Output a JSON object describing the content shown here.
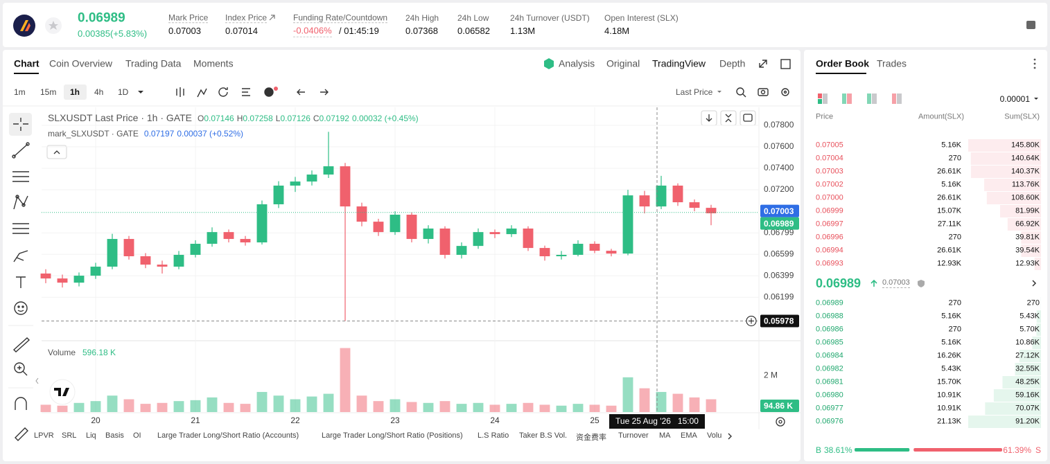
{
  "header": {
    "price": "0.06989",
    "change": "0.00385(+5.83%)",
    "stats": [
      {
        "label": "Mark Price",
        "value": "0.07003"
      },
      {
        "label": "Index Price",
        "value": "0.07014"
      },
      {
        "label": "Funding Rate/Countdown",
        "value": "-0.0406%",
        "countdown": "/ 01:45:19"
      },
      {
        "label": "24h High",
        "value": "0.07368"
      },
      {
        "label": "24h Low",
        "value": "0.06582"
      },
      {
        "label": "24h Turnover (USDT)",
        "value": "1.13M"
      },
      {
        "label": "Open Interest (SLX)",
        "value": "4.18M"
      }
    ]
  },
  "chart_panel": {
    "tabs": [
      "Chart",
      "Coin Overview",
      "Trading Data",
      "Moments"
    ],
    "selected_tab": 0,
    "views": [
      "Analysis",
      "Original",
      "TradingView",
      "Depth"
    ],
    "selected_view": 2,
    "intervals": [
      "1m",
      "15m",
      "1h",
      "4h",
      "1D"
    ],
    "selected_interval": 2,
    "price_type": "Last Price",
    "indicators": [
      "LPVR",
      "SRL",
      "Liq",
      "Basis",
      "OI",
      "Large Trader Long/Short Ratio (Accounts)",
      "Large Trader Long/Short Ratio (Positions)",
      "L.S Ratio",
      "Taker B.S Vol.",
      "资金费率",
      "Turnover",
      "MA",
      "EMA",
      "Volu"
    ]
  },
  "chart_data": {
    "type": "candlestick",
    "legend": {
      "title": "SLXUSDT Last Price · 1h · GATE",
      "ohlc": [
        {
          "label": "O",
          "value": "0.07146"
        },
        {
          "label": "H",
          "value": "0.07258"
        },
        {
          "label": "L",
          "value": "0.07126"
        },
        {
          "label": "C",
          "value": "0.07192"
        }
      ],
      "change": "0.00032 (+0.45%)",
      "mark_title": "mark_SLXUSDT · GATE",
      "mark_value": "0.07197",
      "mark_change": "0.00037 (+0.52%)"
    },
    "up_color": "#2ebd85",
    "down_color": "#f0616d",
    "mark_color": "#2f6ee5",
    "x": [
      -12,
      -8,
      -4,
      0,
      4,
      8,
      12,
      16,
      20,
      24,
      28,
      32,
      36,
      40,
      44,
      48,
      52,
      56,
      60,
      64,
      68,
      72,
      76,
      80,
      84,
      88,
      92,
      96,
      100,
      104,
      108,
      112,
      116,
      120,
      124,
      128,
      132,
      136,
      140,
      144,
      148
    ],
    "open": [
      0.0642,
      0.06374,
      0.06335,
      0.064,
      0.06484,
      0.06742,
      0.06581,
      0.06503,
      0.06484,
      0.06594,
      0.06697,
      0.06806,
      0.06742,
      0.0671,
      0.07065,
      0.07239,
      0.07277,
      0.07342,
      0.07419,
      0.07045,
      0.06903,
      0.06806,
      0.06968,
      0.06742,
      0.06839,
      0.06594,
      0.06677,
      0.06806,
      0.06787,
      0.06839,
      0.06658,
      0.06581,
      0.06594,
      0.06697,
      0.06632,
      0.06606,
      0.07148,
      0.07045,
      0.07239,
      0.07084,
      0.07032
    ],
    "high": [
      0.0646,
      0.0641,
      0.0643,
      0.0652,
      0.0679,
      0.0677,
      0.0661,
      0.0654,
      0.0663,
      0.0673,
      0.0685,
      0.0683,
      0.0677,
      0.071,
      0.0728,
      0.0732,
      0.0738,
      0.0774,
      0.0745,
      0.0708,
      0.0693,
      0.07,
      0.0699,
      0.0687,
      0.0686,
      0.0671,
      0.0684,
      0.0683,
      0.0687,
      0.0686,
      0.0668,
      0.0663,
      0.0673,
      0.0672,
      0.0665,
      0.072,
      0.0719,
      0.0733,
      0.0726,
      0.0711,
      0.0706
    ],
    "low": [
      0.0633,
      0.0629,
      0.063,
      0.0637,
      0.0646,
      0.0655,
      0.0647,
      0.0642,
      0.0646,
      0.0657,
      0.0667,
      0.0671,
      0.0668,
      0.0669,
      0.0703,
      0.0718,
      0.0724,
      0.0731,
      0.05978,
      0.0686,
      0.0677,
      0.0678,
      0.0671,
      0.067,
      0.0656,
      0.0656,
      0.0665,
      0.0675,
      0.0676,
      0.0663,
      0.0654,
      0.0655,
      0.0658,
      0.0661,
      0.0658,
      0.0659,
      0.0698,
      0.0702,
      0.0705,
      0.07,
      0.0687
    ],
    "close": [
      0.06374,
      0.06335,
      0.064,
      0.06484,
      0.06742,
      0.06581,
      0.06503,
      0.06484,
      0.06594,
      0.06697,
      0.06806,
      0.06742,
      0.0671,
      0.07065,
      0.07239,
      0.07277,
      0.07342,
      0.07419,
      0.07045,
      0.06903,
      0.06806,
      0.06968,
      0.06742,
      0.06839,
      0.06594,
      0.06677,
      0.06806,
      0.06787,
      0.06839,
      0.06658,
      0.06581,
      0.06594,
      0.06697,
      0.06632,
      0.06606,
      0.07148,
      0.07045,
      0.07239,
      0.07084,
      0.07032,
      0.06981
    ],
    "volume": [
      400000,
      350000,
      500000,
      600000,
      900000,
      700000,
      450000,
      500000,
      600000,
      650000,
      800000,
      500000,
      450000,
      1100000,
      900000,
      700000,
      850000,
      1000000,
      3500000,
      900000,
      600000,
      700000,
      550000,
      500000,
      600000,
      450000,
      500000,
      400000,
      450000,
      500000,
      400000,
      350000,
      450000,
      400000,
      350000,
      1900000,
      1300000,
      1100000,
      1000000,
      800000,
      700000
    ],
    "xlim": [
      -13,
      159.5
    ],
    "xticks": [
      {
        "value": 0,
        "label": "20"
      },
      {
        "value": 24,
        "label": "21"
      },
      {
        "value": 48,
        "label": "22"
      },
      {
        "value": 72,
        "label": "23"
      },
      {
        "value": 96,
        "label": "24"
      },
      {
        "value": 120,
        "label": "25"
      }
    ],
    "ylim": [
      0.05794,
      0.07968
    ],
    "yticks": [
      {
        "value": 0.078,
        "label": "0.07800"
      },
      {
        "value": 0.076,
        "label": "0.07600"
      },
      {
        "value": 0.074,
        "label": "0.07400"
      },
      {
        "value": 0.072,
        "label": "0.07200"
      },
      0.06799,
      0.06599,
      0.06399,
      0.06199
    ],
    "volume_lim": [
      0,
      3900000
    ],
    "volume_ticks": [
      {
        "value": 2000000,
        "label": "2 M"
      }
    ],
    "volume_label": "Volume",
    "volume_value": "596.18 K",
    "volume_tag": {
      "value": 94860,
      "label": "94.86 K"
    },
    "mark_price": 0.07003,
    "last_price": 0.06989,
    "crosshair": {
      "x": {
        "value": 135,
        "label": "Tue 25 Aug '26   15:00"
      },
      "y": 0.05978
    },
    "grid": true
  },
  "order_book": {
    "tabs": [
      "Order Book",
      "Trades"
    ],
    "precision": "0.00001",
    "columns": [
      "Price",
      "Amount(SLX)",
      "Sum(SLX)"
    ],
    "asks": [
      [
        "0.07005",
        "5.16K",
        {
          "value": 145800,
          "label": "145.80K"
        }
      ],
      [
        "0.07004",
        "270",
        {
          "value": 140640,
          "label": "140.64K"
        }
      ],
      [
        "0.07003",
        "26.61K",
        {
          "value": 140370,
          "label": "140.37K"
        }
      ],
      [
        "0.07002",
        "5.16K",
        {
          "value": 113760,
          "label": "113.76K"
        }
      ],
      [
        "0.07000",
        "26.61K",
        {
          "value": 108600,
          "label": "108.60K"
        }
      ],
      [
        "0.06999",
        "15.07K",
        {
          "value": 81990,
          "label": "81.99K"
        }
      ],
      [
        "0.06997",
        "27.11K",
        {
          "value": 66920,
          "label": "66.92K"
        }
      ],
      [
        "0.06996",
        "270",
        {
          "value": 39810,
          "label": "39.81K"
        }
      ],
      [
        "0.06994",
        "26.61K",
        {
          "value": 39540,
          "label": "39.54K"
        }
      ],
      [
        "0.06993",
        "12.93K",
        {
          "value": 12930,
          "label": "12.93K"
        }
      ]
    ],
    "last_price": "0.06989",
    "mark_price": "0.07003",
    "bids": [
      [
        "0.06989",
        "270",
        270
      ],
      [
        "0.06988",
        "5.16K",
        {
          "value": 5430,
          "label": "5.43K"
        }
      ],
      [
        "0.06986",
        "270",
        {
          "value": 5700,
          "label": "5.70K"
        }
      ],
      [
        "0.06985",
        "5.16K",
        {
          "value": 10860,
          "label": "10.86K"
        }
      ],
      [
        "0.06984",
        "16.26K",
        {
          "value": 27120,
          "label": "27.12K"
        }
      ],
      [
        "0.06982",
        "5.43K",
        {
          "value": 32550,
          "label": "32.55K"
        }
      ],
      [
        "0.06981",
        "15.70K",
        {
          "value": 48250,
          "label": "48.25K"
        }
      ],
      [
        "0.06980",
        "10.91K",
        {
          "value": 59160,
          "label": "59.16K"
        }
      ],
      [
        "0.06977",
        "10.91K",
        {
          "value": 70070,
          "label": "70.07K"
        }
      ],
      [
        "0.06976",
        "21.13K",
        {
          "value": 91200,
          "label": "91.20K"
        }
      ]
    ],
    "ratio": {
      "buy_label": "B",
      "buy": {
        "value": 38.61,
        "label": "38.61%"
      },
      "sell_label": "S",
      "sell": {
        "value": 61.39,
        "label": "61.39%"
      }
    }
  }
}
